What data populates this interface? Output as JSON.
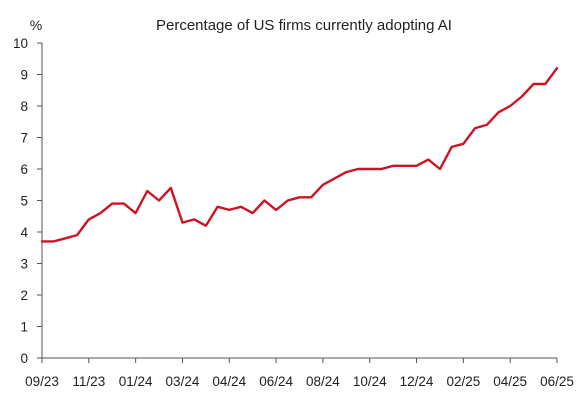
{
  "chart_data": {
    "type": "line",
    "title": "Percentage of US firms currently adopting AI",
    "ylabel": "%",
    "xlabel": "",
    "ylim": [
      0,
      10
    ],
    "yticks": [
      "0",
      "1",
      "2",
      "3",
      "4",
      "5",
      "6",
      "7",
      "8",
      "9",
      "10"
    ],
    "xtick_labels": [
      "09/23",
      "11/23",
      "01/24",
      "03/24",
      "04/24",
      "06/24",
      "08/24",
      "10/24",
      "12/24",
      "02/25",
      "04/25",
      "06/25"
    ],
    "grid": false,
    "legend": "none",
    "line_color": "#cc1424",
    "series": [
      {
        "values": [
          3.7,
          3.7,
          3.8,
          3.9,
          4.4,
          4.6,
          4.9,
          4.9,
          4.6,
          5.3,
          5.0,
          5.4,
          4.3,
          4.4,
          4.2,
          4.8,
          4.7,
          4.8,
          4.6,
          5.0,
          4.7,
          5.0,
          5.1,
          5.1,
          5.5,
          5.7,
          5.9,
          6.0,
          6.0,
          6.0,
          6.1,
          6.1,
          6.1,
          6.3,
          6.0,
          6.7,
          6.8,
          7.3,
          7.4,
          7.8,
          8.0,
          8.3,
          8.7,
          8.7,
          9.2
        ]
      }
    ]
  }
}
